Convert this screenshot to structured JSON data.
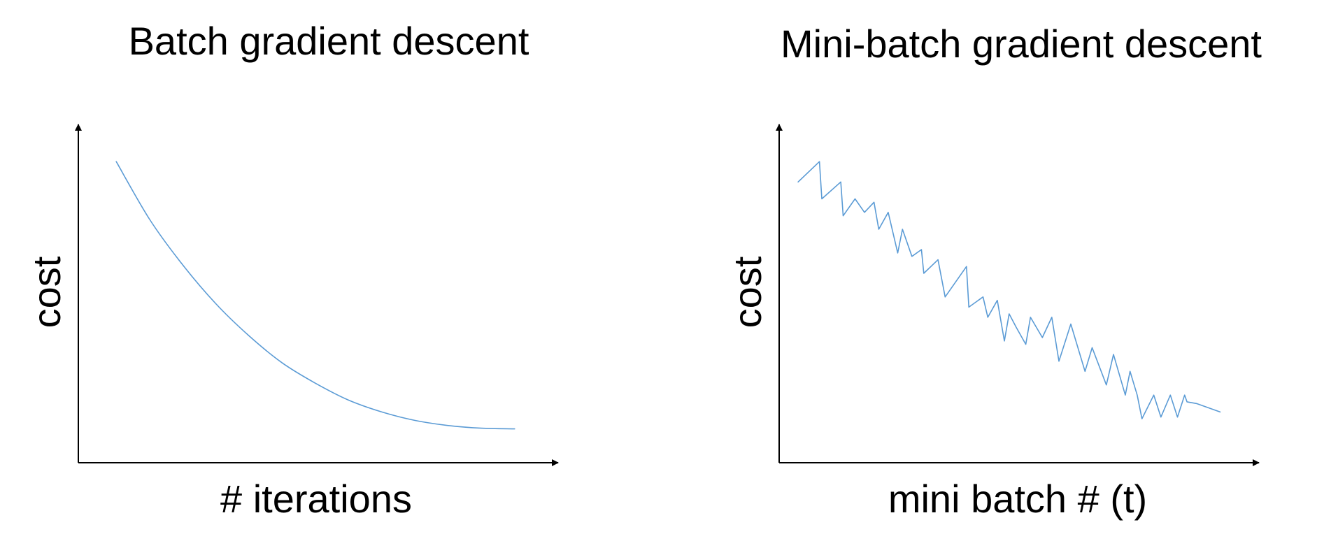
{
  "colors": {
    "axis": "#000000",
    "series": "#5b9bd5",
    "background": "#ffffff"
  },
  "chart_data": [
    {
      "type": "line",
      "title": "Batch gradient descent",
      "xlabel": "# iterations",
      "ylabel": "cost",
      "xlim": [
        0,
        10
      ],
      "ylim": [
        0,
        10
      ],
      "series": [
        {
          "x": [
            0.8,
            1.5,
            2.2,
            2.9,
            3.6,
            4.3,
            5.0,
            5.7,
            6.4,
            7.1,
            7.8,
            8.5,
            9.2
          ],
          "values": [
            8.9,
            7.2,
            5.85,
            4.7,
            3.75,
            2.95,
            2.35,
            1.85,
            1.5,
            1.25,
            1.1,
            1.02,
            1.0
          ]
        }
      ]
    },
    {
      "type": "line",
      "title": "Mini-batch gradient descent",
      "xlabel": "mini batch # (t)",
      "ylabel": "cost",
      "xlim": [
        0,
        10
      ],
      "ylim": [
        0,
        10
      ],
      "series": [
        {
          "x": [
            0.4,
            0.85,
            0.9,
            1.3,
            1.35,
            1.6,
            1.8,
            2.0,
            2.1,
            2.3,
            2.5,
            2.6,
            2.8,
            3.0,
            3.05,
            3.35,
            3.5,
            3.95,
            4.0,
            4.3,
            4.4,
            4.6,
            4.75,
            4.85,
            5.0,
            5.2,
            5.3,
            5.55,
            5.75,
            5.9,
            6.15,
            6.45,
            6.6,
            6.9,
            7.05,
            7.3,
            7.4,
            7.55,
            7.65,
            7.9,
            8.05,
            8.25,
            8.4,
            8.55,
            8.6,
            8.8,
            9.3
          ],
          "values": [
            8.3,
            8.9,
            7.8,
            8.3,
            7.3,
            7.8,
            7.4,
            7.7,
            6.9,
            7.4,
            6.2,
            6.9,
            6.1,
            6.3,
            5.6,
            6.0,
            4.9,
            5.8,
            4.6,
            4.9,
            4.3,
            4.8,
            3.6,
            4.4,
            4.0,
            3.5,
            4.3,
            3.7,
            4.3,
            3.0,
            4.1,
            2.7,
            3.4,
            2.3,
            3.2,
            2.0,
            2.7,
            2.0,
            1.3,
            2.0,
            1.35,
            2.0,
            1.35,
            2.0,
            1.8,
            1.75,
            1.5
          ]
        }
      ]
    }
  ]
}
